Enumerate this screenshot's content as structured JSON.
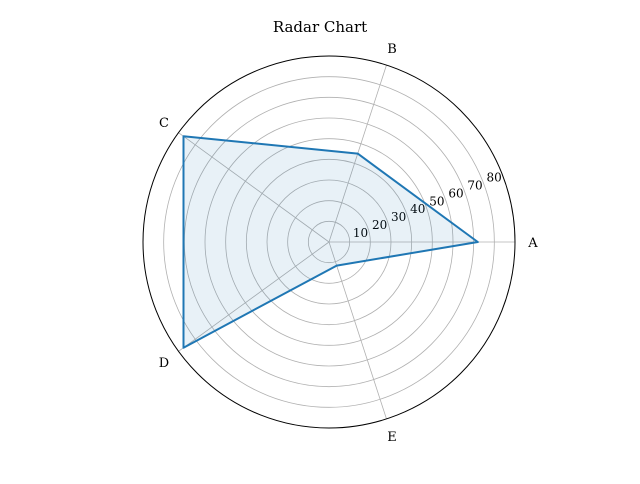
{
  "chart_data": {
    "type": "radar",
    "title": "Radar Chart",
    "categories": [
      "A",
      "B",
      "C",
      "D",
      "E"
    ],
    "radial_ticks": [
      "10",
      "20",
      "30",
      "40",
      "50",
      "60",
      "70",
      "80"
    ],
    "rlim": [
      0,
      90
    ],
    "grid": true,
    "series": [
      {
        "values": [
          72,
          45,
          87,
          87,
          12
        ],
        "color": "#1f77b4"
      }
    ]
  }
}
